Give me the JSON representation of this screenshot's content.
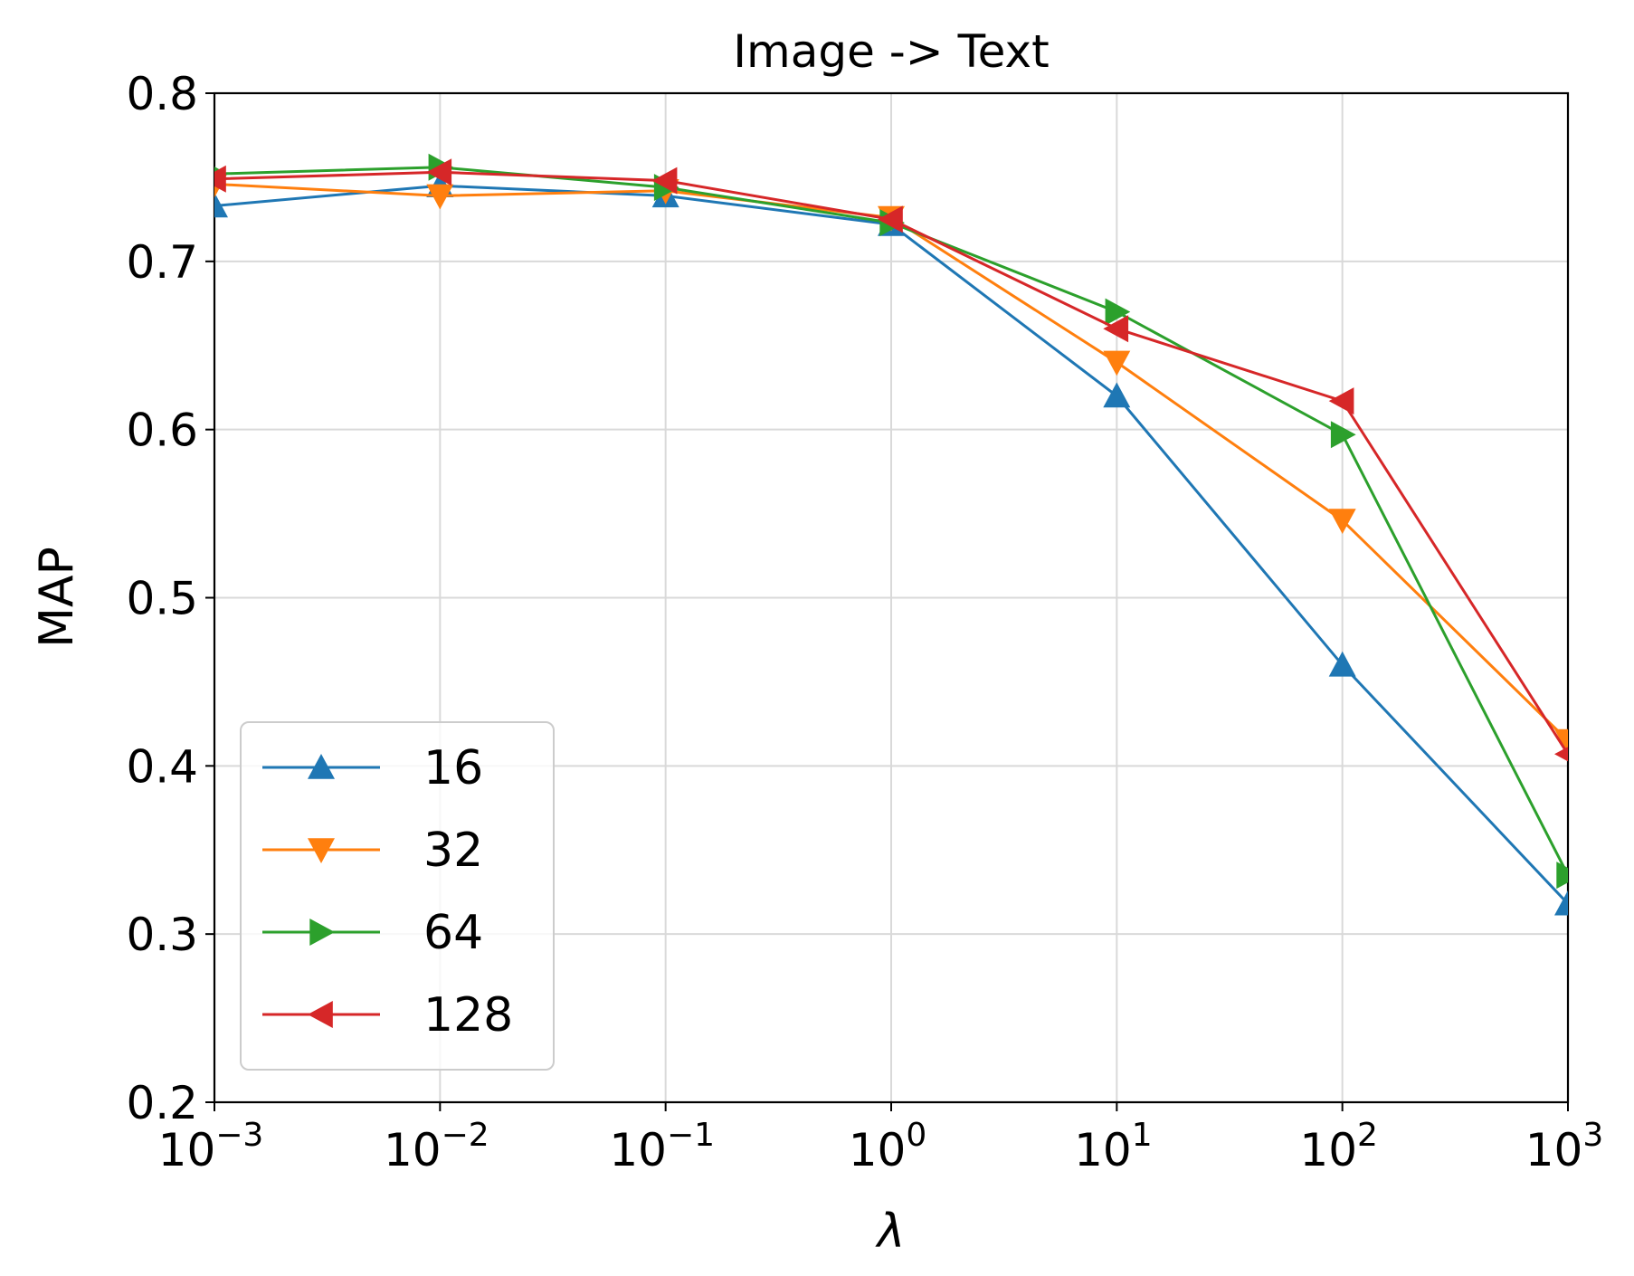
{
  "chart_data": {
    "type": "line",
    "title": "Image -> Text",
    "xlabel": "λ",
    "ylabel": "MAP",
    "x_scale": "log",
    "xlim": [
      0.001,
      1000
    ],
    "ylim": [
      0.2,
      0.8
    ],
    "x": [
      0.001,
      0.01,
      0.1,
      1,
      10,
      100,
      1000
    ],
    "x_ticks": [
      {
        "base": "10",
        "exp": "−3"
      },
      {
        "base": "10",
        "exp": "−2"
      },
      {
        "base": "10",
        "exp": "−1"
      },
      {
        "base": "10",
        "exp": "0"
      },
      {
        "base": "10",
        "exp": "1"
      },
      {
        "base": "10",
        "exp": "2"
      },
      {
        "base": "10",
        "exp": "3"
      }
    ],
    "y_ticks": [
      "0.2",
      "0.3",
      "0.4",
      "0.5",
      "0.6",
      "0.7",
      "0.8"
    ],
    "y_tick_values": [
      0.2,
      0.3,
      0.4,
      0.5,
      0.6,
      0.7,
      0.8
    ],
    "grid": true,
    "legend_position": "lower-left",
    "series": [
      {
        "name": "16",
        "color": "#1f77b4",
        "marker": "triangle-up",
        "values": [
          0.733,
          0.745,
          0.739,
          0.722,
          0.62,
          0.46,
          0.318
        ]
      },
      {
        "name": "32",
        "color": "#ff7f0e",
        "marker": "triangle-down",
        "values": [
          0.746,
          0.739,
          0.742,
          0.726,
          0.64,
          0.546,
          0.415
        ]
      },
      {
        "name": "64",
        "color": "#2ca02c",
        "marker": "triangle-right",
        "values": [
          0.752,
          0.756,
          0.744,
          0.723,
          0.67,
          0.597,
          0.335
        ]
      },
      {
        "name": "128",
        "color": "#d62728",
        "marker": "triangle-left",
        "values": [
          0.749,
          0.753,
          0.748,
          0.725,
          0.66,
          0.617,
          0.407
        ]
      }
    ]
  }
}
